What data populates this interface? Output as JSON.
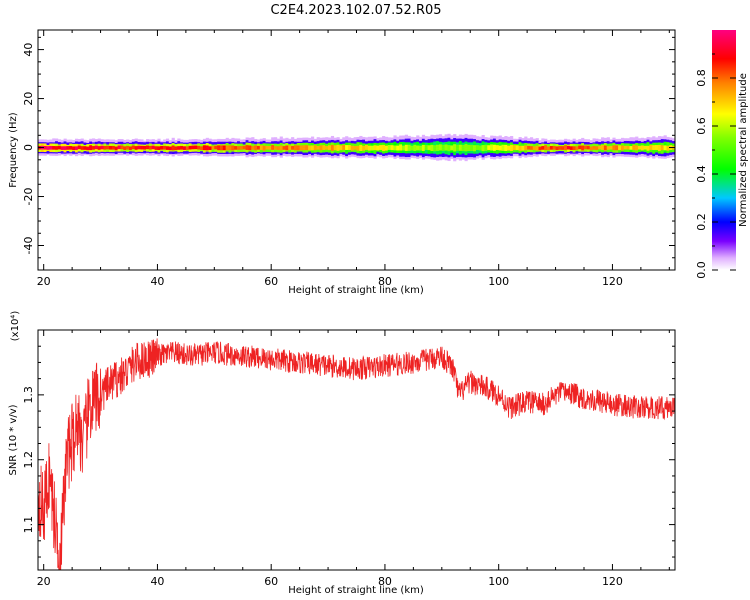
{
  "title": "C2E4.2023.102.07.52.R05",
  "colors": {
    "snr_line": "#ee2222",
    "frame": "#000000",
    "background": "#ffffff"
  },
  "chart_data": [
    {
      "type": "heatmap",
      "title": "C2E4.2023.102.07.52.R05",
      "xlabel": "Height of straight line (km)",
      "ylabel": "Frequency (Hz)",
      "xlim": [
        19,
        131
      ],
      "ylim": [
        -50,
        48
      ],
      "xticks": [
        20,
        40,
        60,
        80,
        100,
        120
      ],
      "yticks": [
        -40,
        -20,
        0,
        20,
        40
      ],
      "grid": false,
      "colorbar": {
        "label": "Normalized spectral amplitude",
        "range": [
          0,
          1
        ],
        "ticks": [
          "0.0",
          "0.2",
          "0.4",
          "0.6",
          "0.8"
        ],
        "colormap": "rainbow (white-violet-blue-cyan-green-yellow-red-magenta)"
      },
      "band": {
        "center_frequency_hz": 0,
        "description": "spectral energy concentrated near 0 Hz across all heights",
        "halfwidth_hz_samples": [
          {
            "x": 20,
            "hw": 3
          },
          {
            "x": 30,
            "hw": 3
          },
          {
            "x": 40,
            "hw": 3
          },
          {
            "x": 60,
            "hw": 3.5
          },
          {
            "x": 80,
            "hw": 4
          },
          {
            "x": 92,
            "hw": 5
          },
          {
            "x": 100,
            "hw": 4
          },
          {
            "x": 110,
            "hw": 3
          },
          {
            "x": 130,
            "hw": 4
          }
        ],
        "center_amplitude_samples": [
          {
            "x": 20,
            "a": 0.95
          },
          {
            "x": 35,
            "a": 0.9
          },
          {
            "x": 50,
            "a": 0.85
          },
          {
            "x": 70,
            "a": 0.75
          },
          {
            "x": 85,
            "a": 0.6
          },
          {
            "x": 95,
            "a": 0.55
          },
          {
            "x": 102,
            "a": 0.7
          },
          {
            "x": 110,
            "a": 0.9
          },
          {
            "x": 125,
            "a": 0.7
          }
        ]
      }
    },
    {
      "type": "line",
      "xlabel": "Height of straight line (km)",
      "ylabel": "SNR (10 * v/v)",
      "scale_label": "(x10⁴)",
      "xlim": [
        19,
        131
      ],
      "ylim": [
        1.03,
        1.4
      ],
      "xticks": [
        20,
        40,
        60,
        80,
        100,
        120
      ],
      "yticks": [
        1.1,
        1.2,
        1.3
      ],
      "ytick_labels": [
        "1.1",
        "1.2",
        "1.3"
      ],
      "grid": false,
      "series": [
        {
          "color": "#ee2222",
          "x": [
            19,
            20,
            21,
            22,
            23,
            24,
            25,
            26,
            27,
            28,
            30,
            32,
            34,
            36,
            38,
            40,
            43,
            46,
            50,
            55,
            60,
            65,
            70,
            75,
            80,
            85,
            88,
            90,
            91,
            92,
            93,
            95,
            98,
            100,
            102,
            105,
            108,
            110,
            112,
            115,
            118,
            120,
            125,
            130
          ],
          "y": [
            1.15,
            1.12,
            1.18,
            1.1,
            1.06,
            1.2,
            1.23,
            1.26,
            1.22,
            1.28,
            1.3,
            1.32,
            1.33,
            1.35,
            1.355,
            1.36,
            1.365,
            1.36,
            1.365,
            1.36,
            1.355,
            1.35,
            1.345,
            1.34,
            1.345,
            1.35,
            1.355,
            1.36,
            1.35,
            1.34,
            1.3,
            1.32,
            1.31,
            1.3,
            1.28,
            1.29,
            1.285,
            1.3,
            1.305,
            1.295,
            1.29,
            1.285,
            1.28,
            1.28
          ]
        }
      ]
    }
  ]
}
